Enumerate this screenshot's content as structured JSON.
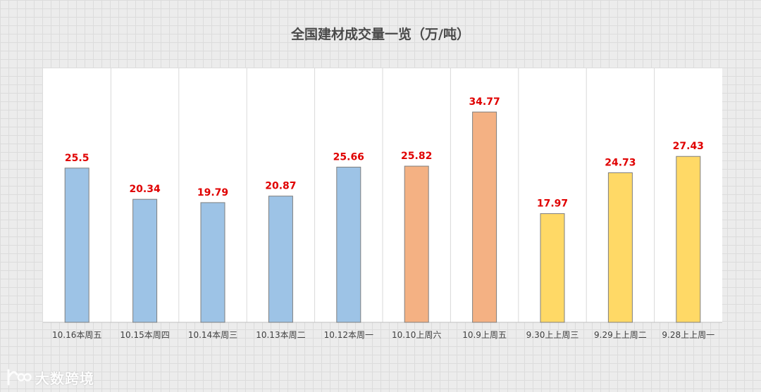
{
  "chart_data": {
    "type": "bar",
    "title": "全国建材成交量一览（万/吨）",
    "categories": [
      "10.16本周五",
      "10.15本周四",
      "10.14本周三",
      "10.13本周二",
      "10.12本周一",
      "10.10上周六",
      "10.9上周五",
      "9.30上上周三",
      "9.29上上周二",
      "9.28上上周一"
    ],
    "values": [
      25.5,
      20.34,
      19.79,
      20.87,
      25.66,
      25.82,
      34.77,
      17.97,
      24.73,
      27.43
    ],
    "value_labels": [
      "25.5",
      "20.34",
      "19.79",
      "20.87",
      "25.66",
      "25.82",
      "34.77",
      "17.97",
      "24.73",
      "27.43"
    ],
    "bar_colors": [
      "#9dc3e6",
      "#9dc3e6",
      "#9dc3e6",
      "#9dc3e6",
      "#9dc3e6",
      "#f4b183",
      "#f4b183",
      "#ffd966",
      "#ffd966",
      "#ffd966"
    ],
    "label_color": "#e00000",
    "ylim": [
      0,
      42
    ],
    "grid": "vertical category separators",
    "legend": "none"
  },
  "watermark": {
    "text": "大数跨境"
  }
}
